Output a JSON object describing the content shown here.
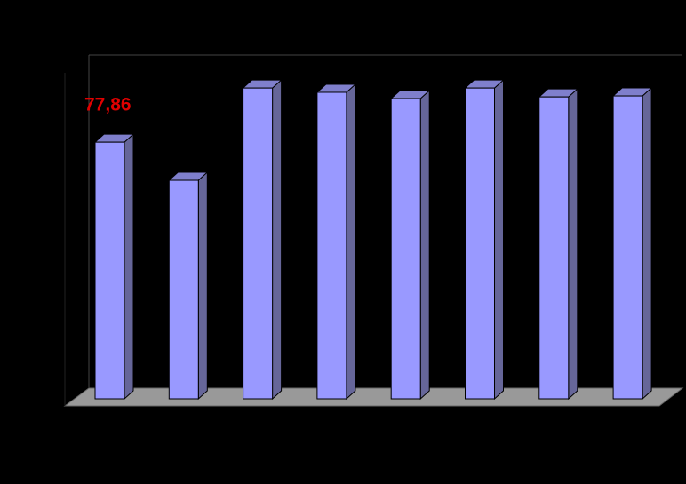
{
  "chart_data": {
    "type": "bar3d",
    "values": [
      77.86,
      66.3,
      94.3,
      93.0,
      91.1,
      94.3,
      91.6,
      91.9
    ],
    "value_labels": [
      "77,86",
      null,
      null,
      null,
      null,
      null,
      null,
      null
    ],
    "ylim": [
      0,
      100
    ],
    "color": "#9999ff",
    "label_color": "#e00000"
  }
}
